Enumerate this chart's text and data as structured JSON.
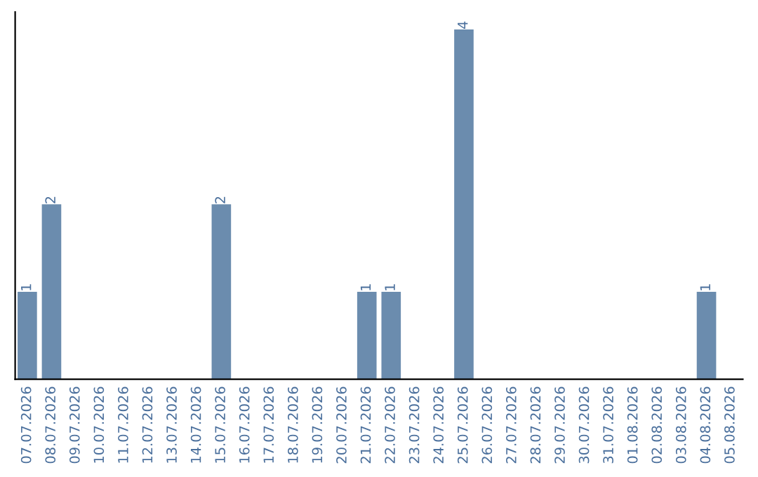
{
  "chart_data": {
    "type": "bar",
    "categories": [
      "07.07.2026",
      "08.07.2026",
      "09.07.2026",
      "10.07.2026",
      "11.07.2026",
      "12.07.2026",
      "13.07.2026",
      "14.07.2026",
      "15.07.2026",
      "16.07.2026",
      "17.07.2026",
      "18.07.2026",
      "19.07.2026",
      "20.07.2026",
      "21.07.2026",
      "22.07.2026",
      "23.07.2026",
      "24.07.2026",
      "25.07.2026",
      "26.07.2026",
      "27.07.2026",
      "28.07.2026",
      "29.07.2026",
      "30.07.2026",
      "31.07.2026",
      "01.08.2026",
      "02.08.2026",
      "03.08.2026",
      "04.08.2026",
      "05.08.2026"
    ],
    "values": [
      1,
      2,
      0,
      0,
      0,
      0,
      0,
      0,
      2,
      0,
      0,
      0,
      0,
      0,
      1,
      1,
      0,
      0,
      4,
      0,
      0,
      0,
      0,
      0,
      0,
      0,
      0,
      0,
      1,
      0
    ],
    "value_labels": [
      "1",
      "2",
      null,
      null,
      null,
      null,
      null,
      null,
      "2",
      null,
      null,
      null,
      null,
      null,
      "1",
      "1",
      null,
      null,
      "4",
      null,
      null,
      null,
      null,
      null,
      null,
      null,
      null,
      null,
      "1",
      null
    ],
    "color": "#6b8cae",
    "grid": false,
    "legend": false,
    "tick_labels": "x"
  }
}
